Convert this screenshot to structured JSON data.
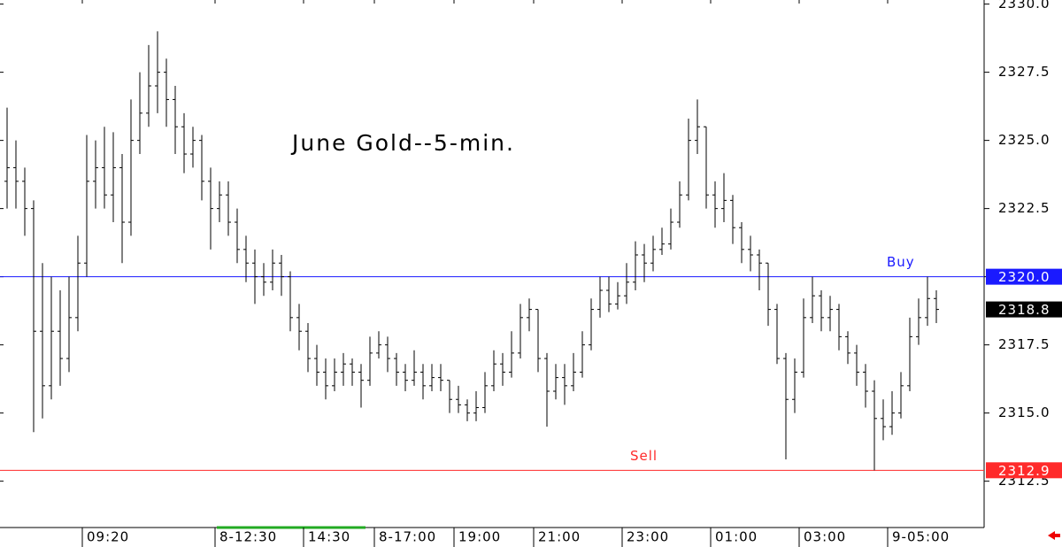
{
  "chart_data": {
    "type": "ohlc",
    "title": "June Gold--5-min.",
    "categories": [
      null,
      null,
      null,
      null,
      null,
      null,
      null,
      null,
      null,
      "09:20",
      null,
      null,
      null,
      null,
      null,
      null,
      null,
      null,
      null,
      null,
      null,
      null,
      null,
      null,
      "8-12:30",
      null,
      null,
      null,
      null,
      null,
      null,
      null,
      null,
      null,
      "14:30",
      null,
      null,
      null,
      null,
      null,
      null,
      null,
      "8-17:00",
      null,
      null,
      null,
      null,
      null,
      null,
      null,
      null,
      "19:00",
      null,
      null,
      null,
      null,
      null,
      null,
      null,
      null,
      "21:00",
      null,
      null,
      null,
      null,
      null,
      null,
      null,
      null,
      null,
      "23:00",
      null,
      null,
      null,
      null,
      null,
      null,
      null,
      null,
      null,
      "01:00",
      null,
      null,
      null,
      null,
      null,
      null,
      null,
      null,
      null,
      "03:00",
      null,
      null,
      null,
      null,
      null,
      null,
      null,
      null,
      null,
      "9-05:00",
      null,
      null,
      null,
      null,
      null
    ],
    "open": [
      2323.5,
      2324.0,
      2323.5,
      2322.5,
      2318.0,
      2316.0,
      2318.0,
      2317.0,
      2318.5,
      2320.5,
      2323.5,
      2324.0,
      2323.0,
      2324.0,
      2322.0,
      2325.0,
      2326.0,
      2327.0,
      2327.5,
      2326.5,
      2325.5,
      2324.5,
      2325.0,
      2323.5,
      2322.5,
      2323.0,
      2322.0,
      2321.0,
      2320.5,
      2320.0,
      2319.8,
      2320.5,
      2320.0,
      2318.5,
      2318.0,
      2317.0,
      2316.5,
      2316.0,
      2316.5,
      2316.8,
      2316.5,
      2316.2,
      2317.2,
      2317.5,
      2317.0,
      2316.5,
      2316.2,
      2316.5,
      2316.0,
      2316.3,
      2316.2,
      2315.5,
      2315.3,
      2315.0,
      2315.2,
      2316.0,
      2316.8,
      2316.5,
      2317.2,
      2318.5,
      2318.8,
      2317.0,
      2315.8,
      2316.3,
      2316.0,
      2316.5,
      2317.5,
      2318.8,
      2319.5,
      2319.0,
      2319.3,
      2319.8,
      2320.8,
      2320.5,
      2321.0,
      2321.2,
      2322.0,
      2323.0,
      2325.0,
      2325.5,
      2323.0,
      2322.5,
      2322.8,
      2321.8,
      2321.0,
      2320.8,
      2320.5,
      2318.8,
      2317.0,
      2315.5,
      2316.5,
      2318.5,
      2319.3,
      2318.5,
      2318.8,
      2317.8,
      2317.2,
      2316.5,
      2315.8,
      2314.8,
      2314.5,
      2315.0,
      2316.0,
      2317.8,
      2318.5,
      2319.2
    ],
    "high": [
      2326.2,
      2325.0,
      2324.0,
      2322.8,
      2320.5,
      2320.0,
      2319.5,
      2320.0,
      2321.5,
      2325.2,
      2325.0,
      2325.5,
      2325.3,
      2324.5,
      2326.5,
      2327.5,
      2328.5,
      2329.0,
      2328.0,
      2327.0,
      2326.0,
      2325.5,
      2325.2,
      2324.0,
      2323.5,
      2323.5,
      2322.5,
      2321.5,
      2321.0,
      2320.5,
      2321.0,
      2320.8,
      2320.2,
      2319.0,
      2318.3,
      2317.5,
      2317.0,
      2317.0,
      2317.2,
      2317.0,
      2316.8,
      2317.8,
      2318.0,
      2317.8,
      2317.2,
      2316.8,
      2317.3,
      2316.8,
      2316.8,
      2316.8,
      2316.2,
      2316.0,
      2315.5,
      2315.8,
      2316.5,
      2317.3,
      2317.2,
      2318.0,
      2319.0,
      2319.2,
      2318.8,
      2317.2,
      2316.8,
      2316.8,
      2317.2,
      2318.0,
      2319.2,
      2320.0,
      2320.0,
      2319.8,
      2320.5,
      2321.3,
      2321.2,
      2321.5,
      2321.8,
      2322.5,
      2323.5,
      2325.8,
      2326.5,
      2325.5,
      2323.5,
      2323.8,
      2323.0,
      2322.0,
      2321.5,
      2321.0,
      2320.5,
      2319.0,
      2317.2,
      2317.0,
      2319.2,
      2320.0,
      2319.5,
      2319.3,
      2319.0,
      2318.0,
      2317.5,
      2316.8,
      2316.2,
      2315.5,
      2315.8,
      2316.5,
      2318.5,
      2319.2,
      2320.0,
      2319.5
    ],
    "low": [
      2322.5,
      2322.5,
      2321.5,
      2314.3,
      2314.8,
      2315.5,
      2316.0,
      2316.5,
      2318.0,
      2320.0,
      2322.5,
      2322.5,
      2322.0,
      2320.5,
      2321.5,
      2324.5,
      2325.5,
      2326.0,
      2325.5,
      2324.5,
      2323.8,
      2324.0,
      2322.8,
      2321.0,
      2322.0,
      2321.5,
      2320.5,
      2319.8,
      2319.0,
      2319.3,
      2319.5,
      2319.3,
      2318.0,
      2317.3,
      2316.5,
      2316.0,
      2315.5,
      2315.8,
      2316.0,
      2316.0,
      2315.2,
      2316.0,
      2317.0,
      2316.5,
      2316.0,
      2315.8,
      2316.0,
      2315.5,
      2315.8,
      2315.8,
      2315.0,
      2315.0,
      2314.7,
      2314.7,
      2315.0,
      2315.8,
      2316.0,
      2316.3,
      2317.0,
      2318.0,
      2316.5,
      2314.5,
      2315.5,
      2315.3,
      2315.8,
      2316.3,
      2317.3,
      2318.5,
      2318.7,
      2318.8,
      2319.0,
      2319.5,
      2319.8,
      2320.2,
      2320.8,
      2321.0,
      2321.8,
      2322.8,
      2324.5,
      2322.5,
      2321.8,
      2322.0,
      2321.2,
      2320.5,
      2320.2,
      2319.5,
      2318.2,
      2316.8,
      2313.3,
      2315.0,
      2316.3,
      2318.3,
      2318.0,
      2318.0,
      2317.3,
      2316.8,
      2316.0,
      2315.2,
      2312.9,
      2314.0,
      2314.2,
      2314.8,
      2315.8,
      2317.5,
      2318.2,
      2318.3
    ],
    "close": [
      2324.0,
      2323.5,
      2322.5,
      2318.0,
      2316.0,
      2318.0,
      2317.0,
      2318.5,
      2320.5,
      2323.5,
      2324.0,
      2323.0,
      2324.0,
      2322.0,
      2325.0,
      2326.0,
      2327.0,
      2327.5,
      2326.5,
      2325.5,
      2324.5,
      2325.0,
      2323.5,
      2322.5,
      2323.0,
      2322.0,
      2321.0,
      2320.5,
      2320.0,
      2319.8,
      2320.5,
      2320.0,
      2318.5,
      2318.0,
      2317.0,
      2316.5,
      2316.0,
      2316.5,
      2316.8,
      2316.5,
      2316.2,
      2317.2,
      2317.5,
      2317.0,
      2316.5,
      2316.2,
      2316.5,
      2316.0,
      2316.3,
      2316.2,
      2315.5,
      2315.3,
      2315.0,
      2315.2,
      2316.0,
      2316.8,
      2316.5,
      2317.2,
      2318.5,
      2318.8,
      2317.0,
      2315.8,
      2316.3,
      2316.0,
      2316.5,
      2317.5,
      2318.8,
      2319.5,
      2319.0,
      2319.3,
      2319.8,
      2320.8,
      2320.5,
      2321.0,
      2321.2,
      2322.0,
      2323.0,
      2325.0,
      2325.5,
      2323.0,
      2322.5,
      2322.8,
      2321.8,
      2321.0,
      2320.8,
      2320.5,
      2318.8,
      2317.0,
      2315.5,
      2316.5,
      2318.5,
      2319.3,
      2318.5,
      2318.8,
      2317.8,
      2317.2,
      2316.5,
      2315.8,
      2314.8,
      2314.5,
      2315.0,
      2316.0,
      2317.8,
      2318.5,
      2319.2,
      2318.8
    ],
    "color": "#000000",
    "ylim": [
      2310.8,
      2330.15
    ],
    "yticks": [
      {
        "value": 2312.5,
        "label": "2312.5"
      },
      {
        "value": 2315,
        "label": "2315.0"
      },
      {
        "value": 2317.5,
        "label": "2317.5"
      },
      {
        "value": 2320,
        "label": "2320.0"
      },
      {
        "value": 2322.5,
        "label": "2322.5"
      },
      {
        "value": 2325,
        "label": "2325.0"
      },
      {
        "value": 2327.5,
        "label": "2327.5"
      },
      {
        "value": 2330,
        "label": "2330.0"
      }
    ],
    "lines": [
      {
        "name": "Buy",
        "value": 2320,
        "label": "2320.0",
        "color": "#1a1aff"
      },
      {
        "name": "Sell",
        "value": 2312.9,
        "label": "2312.9",
        "color": "#ff2a2a"
      }
    ],
    "last": {
      "value": 2318.8,
      "label": "2318.8",
      "color": "#000000"
    }
  }
}
